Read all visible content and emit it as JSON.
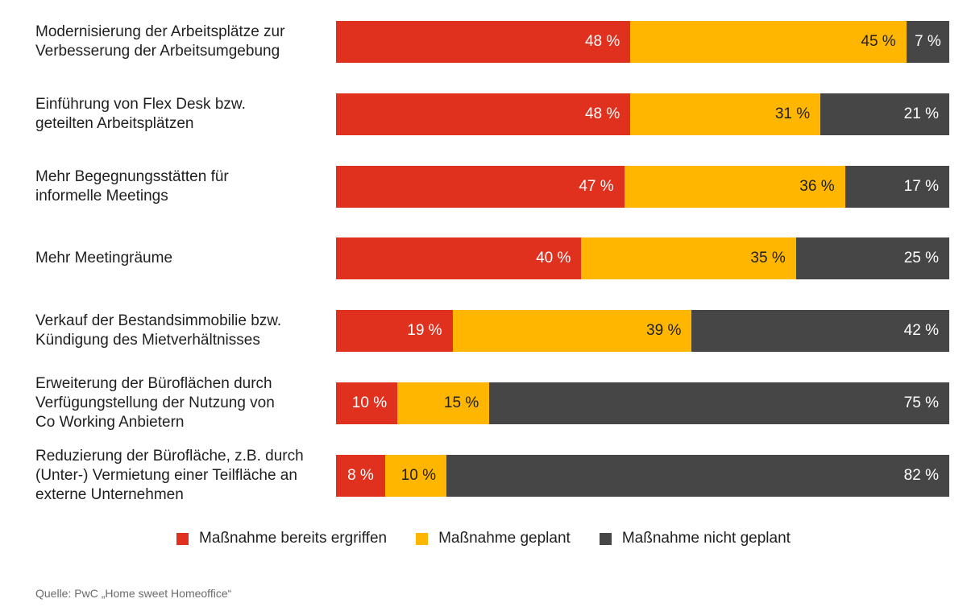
{
  "chart_data": {
    "type": "bar",
    "orientation": "horizontal",
    "stacked": true,
    "categories": [
      "Modernisierung der Arbeitsplätze zur\nVerbesserung der Arbeitsumgebung",
      "Einführung von Flex Desk bzw.\ngeteilten Arbeitsplätzen",
      "Mehr Begegnungsstätten für\ninformelle Meetings",
      "Mehr Meetingräume",
      "Verkauf der Bestandsimmobilie bzw.\nKündigung des Mietverhältnisses",
      "Erweiterung der Büroflächen durch\nVerfügungstellung der Nutzung von\nCo Working Anbietern",
      "Reduzierung der Bürofläche, z.B. durch\n(Unter-) Vermietung einer Teilfläche an\nexterne Unternehmen"
    ],
    "series": [
      {
        "name": "Maßnahme bereits ergriffen",
        "color": "#e0301e",
        "label_color": "#ffffff",
        "values": [
          48,
          48,
          47,
          40,
          19,
          10,
          8
        ],
        "labels": [
          "48 %",
          "48 %",
          "47 %",
          "40 %",
          "19 %",
          "10 %",
          "8 %"
        ]
      },
      {
        "name": "Maßnahme geplant",
        "color": "#ffb600",
        "label_color": "#1f1f1f",
        "values": [
          45,
          31,
          36,
          35,
          39,
          15,
          10
        ],
        "labels": [
          "45 %",
          "31 %",
          "36 %",
          "35 %",
          "39 %",
          "15 %",
          "10 %"
        ]
      },
      {
        "name": "Maßnahme nicht geplant",
        "color": "#464646",
        "label_color": "#ffffff",
        "values": [
          7,
          21,
          17,
          25,
          42,
          75,
          82
        ],
        "labels": [
          "7 %",
          "21 %",
          "17 %",
          "25 %",
          "42 %",
          "75 %",
          "82 %"
        ]
      }
    ],
    "xlim": [
      0,
      100
    ],
    "grid": false,
    "legend_position": "bottom"
  },
  "source": "Quelle: PwC „Home sweet Homeoffice“"
}
